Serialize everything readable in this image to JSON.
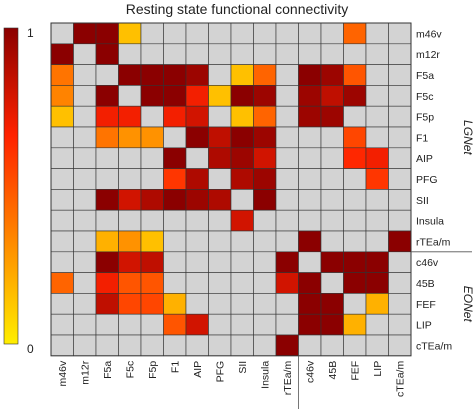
{
  "chart_data": {
    "type": "heatmap",
    "title": "Resting state functional connectivity",
    "colorbar": {
      "min_label": "0",
      "max_label": "1",
      "min": 0,
      "max": 1,
      "colors": [
        "#ffee00",
        "#ff8800",
        "#ff2200",
        "#8b0000"
      ]
    },
    "missing_color": "#d3d3d3",
    "labels": [
      "m46v",
      "m12r",
      "F5a",
      "F5c",
      "F5p",
      "F1",
      "AIP",
      "PFG",
      "SII",
      "Insula",
      "rTEa/m",
      "c46v",
      "45B",
      "FEF",
      "LIP",
      "cTEa/m"
    ],
    "groups": [
      {
        "name": "LGNet",
        "start": 0,
        "end": 10
      },
      {
        "name": "EONet",
        "start": 11,
        "end": 15
      }
    ],
    "matrix": [
      [
        null,
        1.0,
        1.0,
        0.15,
        null,
        null,
        null,
        null,
        null,
        null,
        null,
        null,
        null,
        0.45,
        null,
        null
      ],
      [
        1.0,
        null,
        1.0,
        null,
        null,
        null,
        null,
        null,
        null,
        null,
        null,
        null,
        null,
        null,
        null,
        null
      ],
      [
        0.4,
        null,
        null,
        1.0,
        1.0,
        1.0,
        0.95,
        null,
        0.15,
        0.45,
        null,
        1.0,
        0.95,
        0.5,
        null,
        null
      ],
      [
        0.35,
        null,
        1.0,
        null,
        1.0,
        1.0,
        0.7,
        0.15,
        1.0,
        0.95,
        null,
        0.95,
        0.85,
        0.95,
        null,
        null
      ],
      [
        0.15,
        null,
        0.7,
        0.7,
        null,
        0.7,
        0.8,
        null,
        0.15,
        0.45,
        null,
        0.95,
        0.95,
        null,
        null,
        null
      ],
      [
        null,
        null,
        0.4,
        0.3,
        0.3,
        null,
        1.0,
        0.85,
        1.0,
        0.95,
        null,
        null,
        null,
        0.55,
        null,
        null
      ],
      [
        null,
        null,
        null,
        null,
        null,
        1.0,
        null,
        0.9,
        0.95,
        0.8,
        null,
        null,
        null,
        0.65,
        0.7,
        null
      ],
      [
        null,
        null,
        null,
        null,
        null,
        0.6,
        0.9,
        null,
        0.9,
        0.95,
        null,
        null,
        null,
        null,
        0.6,
        null
      ],
      [
        null,
        null,
        1.0,
        0.8,
        0.9,
        1.0,
        0.95,
        0.9,
        null,
        1.0,
        null,
        null,
        null,
        null,
        null,
        null
      ],
      [
        null,
        null,
        null,
        null,
        null,
        null,
        null,
        null,
        0.8,
        null,
        null,
        null,
        null,
        null,
        null,
        null
      ],
      [
        null,
        null,
        0.2,
        0.3,
        0.15,
        null,
        null,
        null,
        null,
        null,
        null,
        1.0,
        null,
        null,
        null,
        1.0
      ],
      [
        null,
        null,
        1.0,
        0.8,
        0.85,
        null,
        null,
        null,
        null,
        null,
        1.0,
        null,
        1.0,
        1.0,
        1.0,
        null
      ],
      [
        0.45,
        null,
        0.7,
        0.5,
        0.5,
        null,
        null,
        null,
        null,
        null,
        0.8,
        1.0,
        null,
        1.0,
        1.0,
        null
      ],
      [
        null,
        null,
        0.85,
        0.55,
        0.55,
        0.2,
        null,
        null,
        null,
        null,
        null,
        1.0,
        1.0,
        null,
        0.2,
        null
      ],
      [
        null,
        null,
        null,
        null,
        null,
        0.5,
        0.8,
        null,
        null,
        null,
        null,
        1.0,
        1.0,
        0.2,
        null,
        null
      ],
      [
        null,
        null,
        null,
        null,
        null,
        null,
        null,
        null,
        null,
        null,
        1.0,
        null,
        null,
        null,
        null,
        null
      ]
    ]
  }
}
